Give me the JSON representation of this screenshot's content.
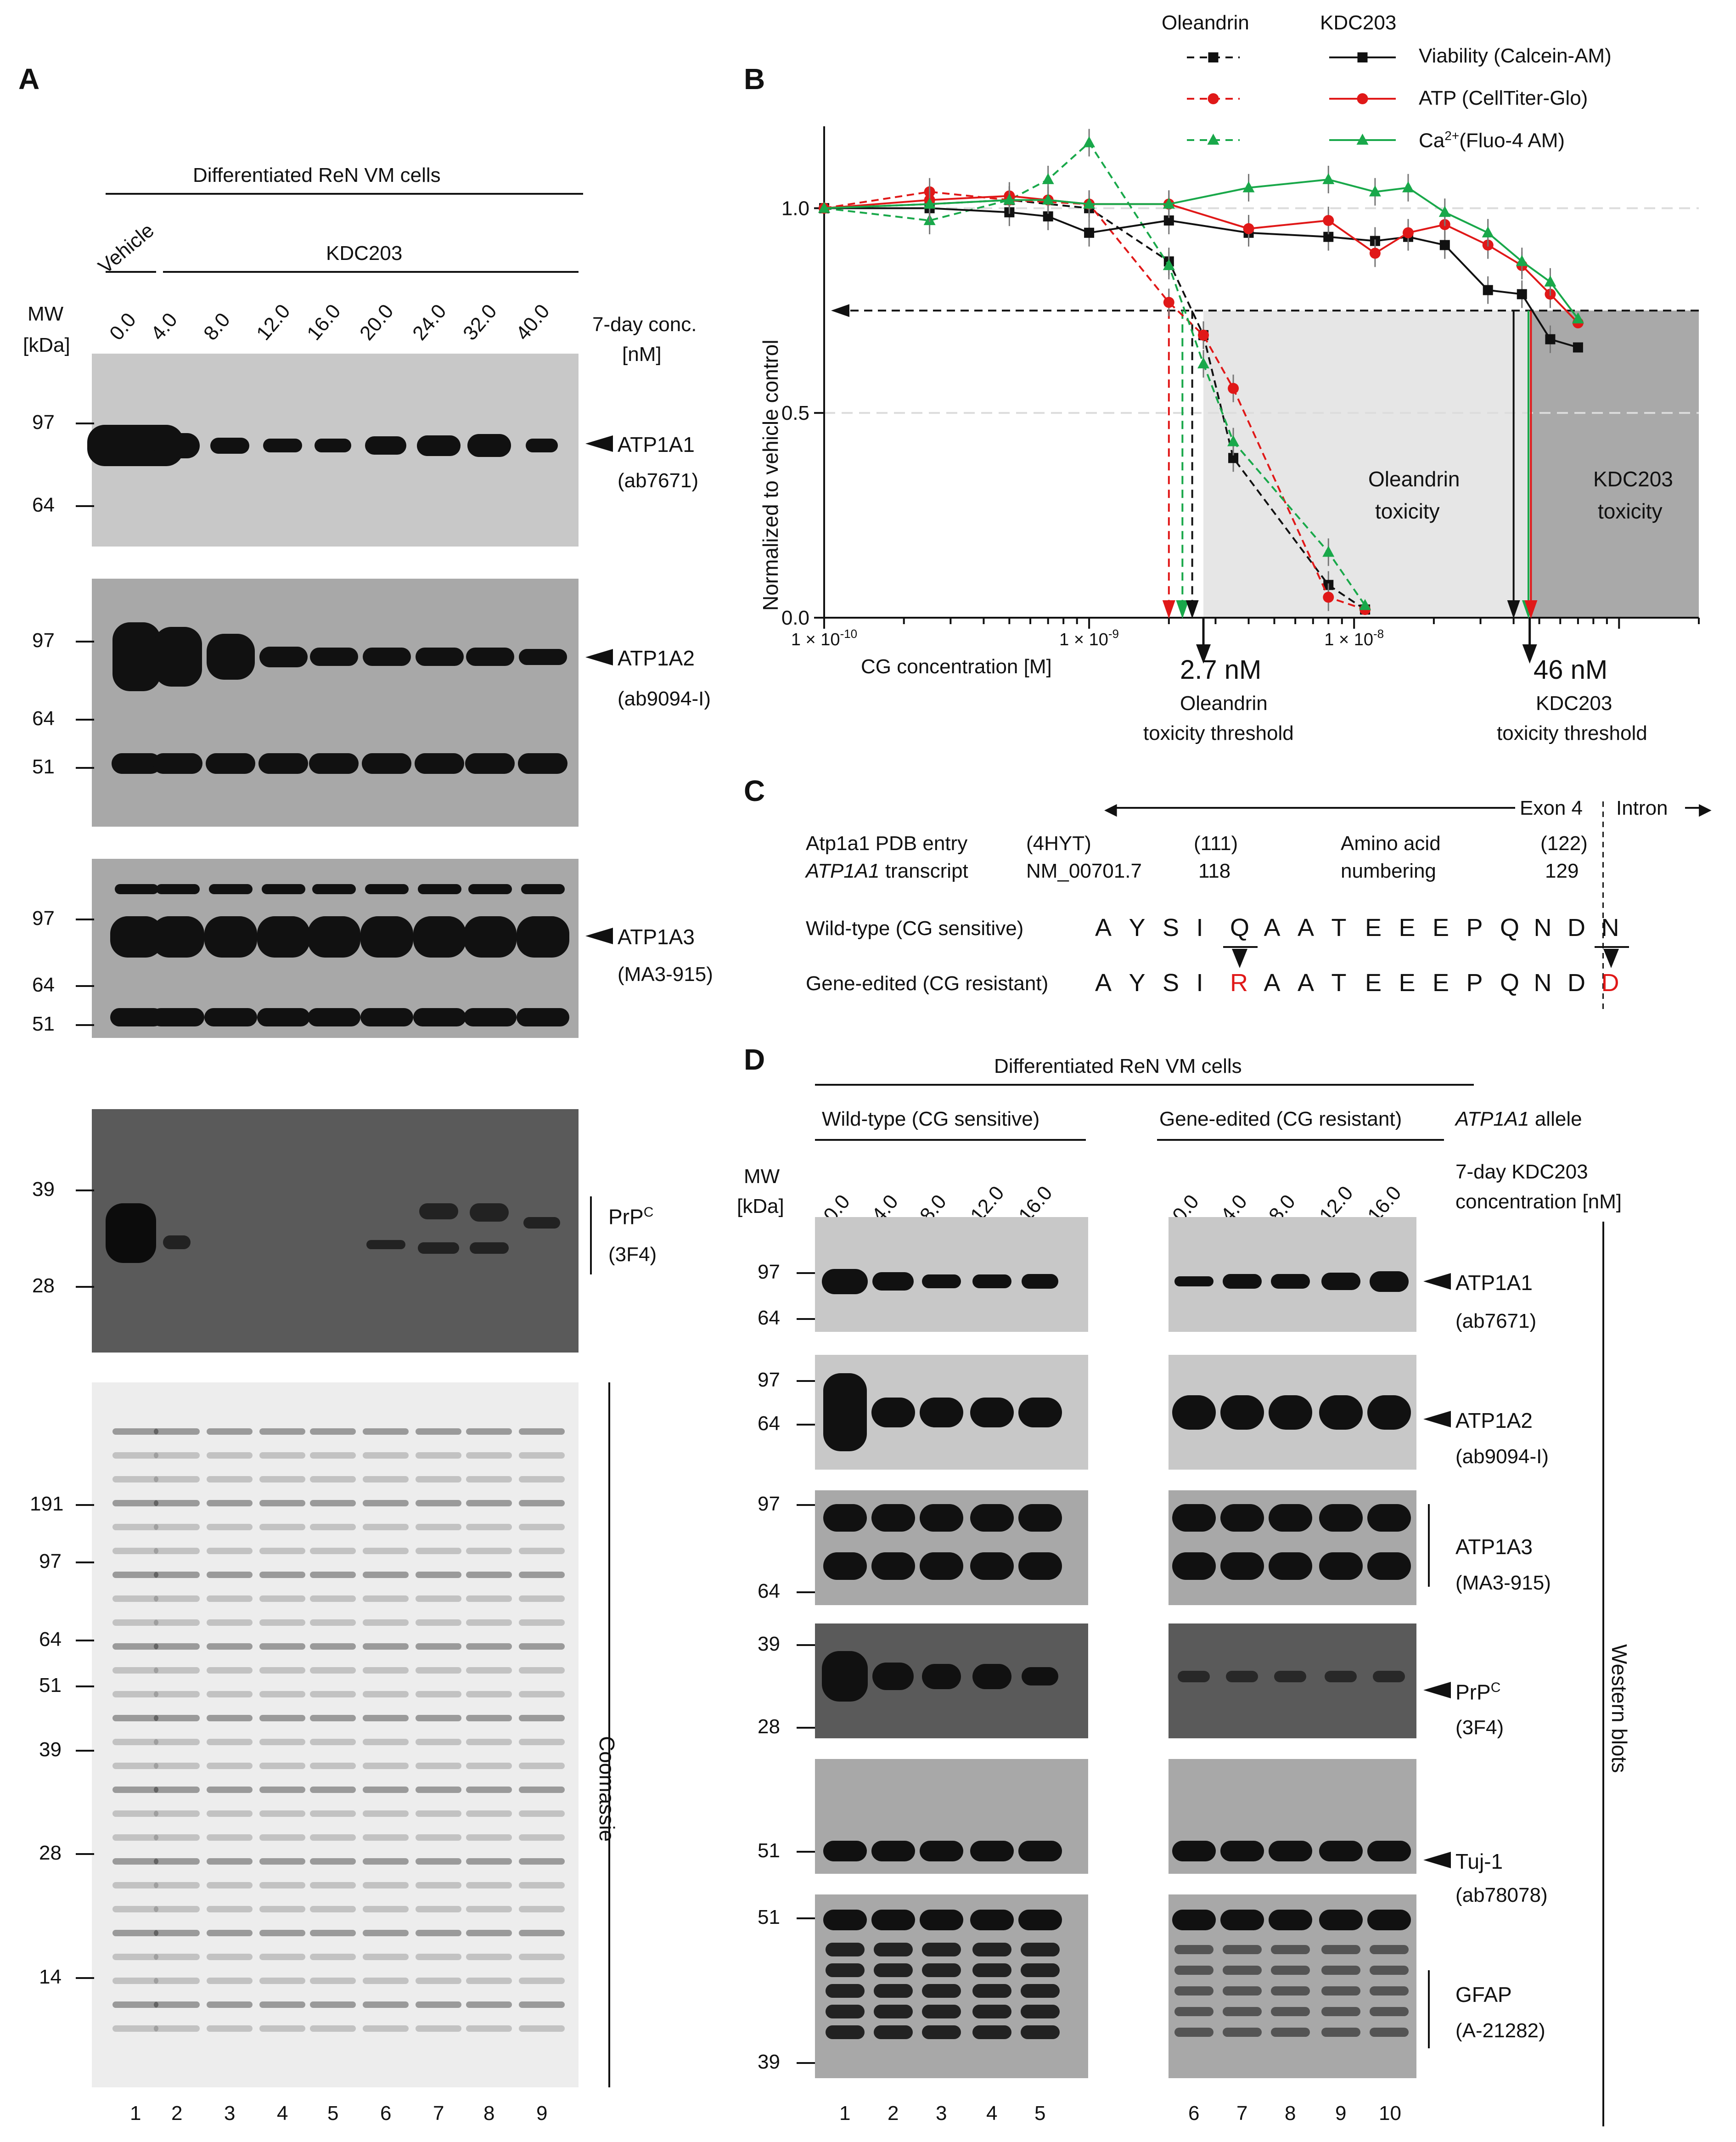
{
  "panelA": {
    "letter": "A",
    "header": "Differentiated ReN VM cells",
    "vehicle": "Vehicle",
    "kdc": "KDC203",
    "mw_label": "MW",
    "mw_unit": "[kDa]",
    "conc_label": "7-day conc.",
    "conc_unit": "[nM]",
    "lanes": [
      "0.0",
      "4.0",
      "8.0",
      "12.0",
      "16.0",
      "20.0",
      "24.0",
      "32.0",
      "40.0"
    ],
    "lane_numbers": [
      "1",
      "2",
      "3",
      "4",
      "5",
      "6",
      "7",
      "8",
      "9"
    ],
    "blots": [
      {
        "antibody": "ATP1A1",
        "clone": "(ab7671)",
        "markers": [
          "97",
          "64"
        ]
      },
      {
        "antibody": "ATP1A2",
        "clone": "(ab9094-I)",
        "markers": [
          "97",
          "64",
          "51"
        ]
      },
      {
        "antibody": "ATP1A3",
        "clone": "(MA3-915)",
        "markers": [
          "97",
          "64",
          "51"
        ]
      },
      {
        "antibody": "PrP",
        "sup": "C",
        "clone": "(3F4)",
        "markers": [
          "39",
          "28"
        ]
      }
    ],
    "gel_markers": [
      "191",
      "97",
      "64",
      "51",
      "39",
      "28",
      "14"
    ],
    "gel_label": "Coomassie"
  },
  "panelB": {
    "letter": "B",
    "legend_head_ole": "Oleandrin",
    "legend_head_kdc": "KDC203",
    "legend": [
      {
        "label": "Viability (Calcein-AM)",
        "color": "#111111"
      },
      {
        "label": "ATP  (CellTiter-Glo)",
        "color": "#e01818"
      },
      {
        "label": "(Fluo-4 AM)",
        "prefix": "Ca",
        "sup": "2+",
        "color": "#19a84a"
      }
    ],
    "ylabel": "Normalized to vehicle control",
    "xlabel": "CG concentration [M]",
    "xticks": [
      "1 × 10",
      "1 × 10",
      "1 × 10"
    ],
    "xtick_exps": [
      "-10",
      "-9",
      "-8"
    ],
    "yticks": [
      "0.0",
      "0.5",
      "1.0"
    ],
    "region_ole": "Oleandrin",
    "region_ole2": "toxicity",
    "region_kdc": "KDC203",
    "region_kdc2": "toxicity",
    "thr_ole_val": "2.7 nM",
    "thr_ole_l1": "Oleandrin",
    "thr_ole_l2": "toxicity threshold",
    "thr_kdc_val": "46 nM",
    "thr_kdc_l1": "KDC203",
    "thr_kdc_l2": "toxicity threshold"
  },
  "chart_data": {
    "type": "line",
    "title": "",
    "xlabel": "CG concentration [M]",
    "ylabel": "Normalized to vehicle control",
    "xscale": "log",
    "xlim": [
      1e-10,
      2e-07
    ],
    "ylim": [
      0,
      1.2
    ],
    "series": [
      {
        "name": "Oleandrin Viability (Calcein-AM)",
        "style": "dashed",
        "marker": "square",
        "color": "#111111",
        "x": [
          1e-10,
          2.5e-10,
          5e-10,
          1e-09,
          2e-09,
          2.7e-09,
          3.5e-09,
          8e-09,
          1.1e-08
        ],
        "y": [
          1.0,
          1.01,
          1.02,
          1.0,
          0.87,
          0.69,
          0.39,
          0.08,
          0.02
        ]
      },
      {
        "name": "Oleandrin ATP (CellTiter-Glo)",
        "style": "dashed",
        "marker": "circle",
        "color": "#e01818",
        "x": [
          1e-10,
          2.5e-10,
          5e-10,
          1e-09,
          2e-09,
          2.7e-09,
          3.5e-09,
          8e-09,
          1.1e-08
        ],
        "y": [
          1.0,
          1.04,
          1.02,
          1.01,
          0.77,
          0.69,
          0.56,
          0.05,
          0.02
        ]
      },
      {
        "name": "Oleandrin Ca2+ (Fluo-4 AM)",
        "style": "dashed",
        "marker": "triangle",
        "color": "#19a84a",
        "x": [
          1e-10,
          2.5e-10,
          5e-10,
          7e-10,
          1e-09,
          2e-09,
          2.7e-09,
          3.5e-09,
          8e-09,
          1.1e-08
        ],
        "y": [
          1.0,
          0.97,
          1.02,
          1.07,
          1.16,
          0.86,
          0.62,
          0.43,
          0.16,
          0.03
        ]
      },
      {
        "name": "KDC203 Viability (Calcein-AM)",
        "style": "solid",
        "marker": "square",
        "color": "#111111",
        "x": [
          1e-10,
          2.5e-10,
          5e-10,
          7e-10,
          1e-09,
          2e-09,
          4e-09,
          8e-09,
          1.2e-08,
          1.6e-08,
          2.2e-08,
          3.2e-08,
          4.3e-08,
          5.5e-08,
          7e-08
        ],
        "y": [
          1.0,
          1.0,
          0.99,
          0.98,
          0.94,
          0.97,
          0.94,
          0.93,
          0.92,
          0.93,
          0.91,
          0.8,
          0.79,
          0.68,
          0.66
        ]
      },
      {
        "name": "KDC203 ATP (CellTiter-Glo)",
        "style": "solid",
        "marker": "circle",
        "color": "#e01818",
        "x": [
          1e-10,
          2.5e-10,
          5e-10,
          7e-10,
          1e-09,
          2e-09,
          4e-09,
          8e-09,
          1.2e-08,
          1.6e-08,
          2.2e-08,
          3.2e-08,
          4.3e-08,
          5.5e-08,
          7e-08
        ],
        "y": [
          1.0,
          1.02,
          1.03,
          1.02,
          1.01,
          1.01,
          0.95,
          0.97,
          0.89,
          0.94,
          0.96,
          0.91,
          0.86,
          0.79,
          0.72
        ]
      },
      {
        "name": "KDC203 Ca2+ (Fluo-4 AM)",
        "style": "solid",
        "marker": "triangle",
        "color": "#19a84a",
        "x": [
          1e-10,
          2.5e-10,
          5e-10,
          7e-10,
          1e-09,
          2e-09,
          4e-09,
          8e-09,
          1.2e-08,
          1.6e-08,
          2.2e-08,
          3.2e-08,
          4.3e-08,
          5.5e-08,
          7e-08
        ],
        "y": [
          1.0,
          1.01,
          1.02,
          1.02,
          1.01,
          1.01,
          1.05,
          1.07,
          1.04,
          1.05,
          0.99,
          0.94,
          0.87,
          0.82,
          0.73
        ]
      }
    ],
    "thresholds": [
      {
        "name": "Oleandrin toxicity threshold",
        "x": 2.7e-09,
        "label": "2.7 nM"
      },
      {
        "name": "KDC203 toxicity threshold",
        "x": 4.6e-08,
        "label": "46 nM"
      }
    ],
    "cutoff_y": 0.75
  },
  "panelC": {
    "letter": "C",
    "exon": "Exon 4",
    "intron": "Intron",
    "pdb_label": "Atp1a1 PDB entry",
    "pdb_id": "(4HYT)",
    "pdb_n1": "(111)",
    "pdb_n2": "(122)",
    "tx_gene": "ATP1A1",
    "tx_label": " transcript",
    "tx_id": "NM_00701.7",
    "tx_n1": "118",
    "tx_n2": "129",
    "aa1": "Amino acid",
    "aa2": "numbering",
    "wt_label": "Wild-type (CG sensitive)",
    "ge_label": "Gene-edited (CG resistant)",
    "wt_seq": [
      "A",
      "Y",
      "S",
      "I",
      "Q",
      "A",
      "A",
      "T",
      "E",
      "E",
      "E",
      "P",
      "Q",
      "N",
      "D",
      "N"
    ],
    "ge_seq": [
      "A",
      "Y",
      "S",
      "I",
      "R",
      "A",
      "A",
      "T",
      "E",
      "E",
      "E",
      "P",
      "Q",
      "N",
      "D",
      "D"
    ],
    "mutated": [
      4,
      15
    ]
  },
  "panelD": {
    "letter": "D",
    "header": "Differentiated ReN VM cells",
    "wt": "Wild-type (CG sensitive)",
    "ge": "Gene-edited (CG resistant)",
    "allele_gene": "ATP1A1",
    "allele": " allele",
    "mw_label": "MW",
    "mw_unit": "[kDa]",
    "conc_l1": "7-day KDC203",
    "conc_l2": "concentration [nM]",
    "lanes": [
      "0.0",
      "4.0",
      "8.0",
      "12.0",
      "16.0"
    ],
    "lane_numbers": [
      "1",
      "2",
      "3",
      "4",
      "5",
      "6",
      "7",
      "8",
      "9",
      "10"
    ],
    "side_label": "Western blots",
    "blots": [
      {
        "antibody": "ATP1A1",
        "clone": "(ab7671)",
        "markers": [
          "97",
          "64"
        ]
      },
      {
        "antibody": "ATP1A2",
        "clone": "(ab9094-I)",
        "markers": [
          "97",
          "64"
        ]
      },
      {
        "antibody": "ATP1A3",
        "clone": "(MA3-915)",
        "markers": [
          "97",
          "64"
        ]
      },
      {
        "antibody": "PrP",
        "sup": "C",
        "clone": "(3F4)",
        "markers": [
          "39",
          "28"
        ]
      },
      {
        "antibody": "Tuj-1",
        "clone": "(ab78078)",
        "markers": [
          "51"
        ]
      },
      {
        "antibody": "GFAP",
        "clone": "(A-21282)",
        "markers": [
          "51",
          "39"
        ]
      }
    ]
  }
}
